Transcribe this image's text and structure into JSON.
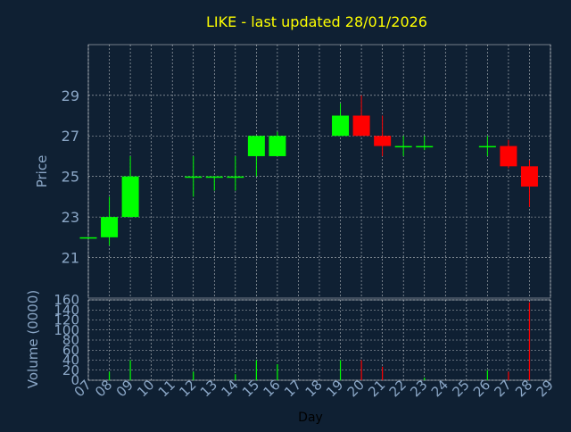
{
  "chart_data": [
    {
      "type": "candlestick",
      "title": "LIKE - last updated 28/01/2026",
      "xlabel": "",
      "ylabel": "Price",
      "ylim": [
        19.0,
        31.5
      ],
      "yticks": [
        "21",
        "23",
        "25",
        "27",
        "29"
      ],
      "grid": true,
      "colors": {
        "up": "#00ff00",
        "down": "#ff0000",
        "grid": "#ffffff",
        "title": "#ffff00",
        "axis_text": "#8ba7c7",
        "background": "#0f2033"
      },
      "x": [
        "07",
        "08",
        "09",
        "10",
        "11",
        "12",
        "13",
        "14",
        "15",
        "16",
        "17",
        "18",
        "19",
        "20",
        "21",
        "22",
        "23",
        "24",
        "25",
        "26",
        "27",
        "28",
        "29"
      ],
      "series": [
        {
          "x": "07",
          "open": 22.0,
          "high": 22.0,
          "low": 22.0,
          "close": 22.0
        },
        {
          "x": "08",
          "open": 22.0,
          "high": 24.0,
          "low": 21.6,
          "close": 23.0
        },
        {
          "x": "09",
          "open": 23.0,
          "high": 26.0,
          "low": 23.0,
          "close": 25.0
        },
        {
          "x": "12",
          "open": 25.0,
          "high": 26.0,
          "low": 24.0,
          "close": 25.0
        },
        {
          "x": "13",
          "open": 25.0,
          "high": 25.0,
          "low": 24.3,
          "close": 25.0
        },
        {
          "x": "14",
          "open": 25.0,
          "high": 26.0,
          "low": 24.3,
          "close": 25.0
        },
        {
          "x": "15",
          "open": 26.0,
          "high": 27.0,
          "low": 25.0,
          "close": 27.0
        },
        {
          "x": "16",
          "open": 26.0,
          "high": 27.2,
          "low": 26.0,
          "close": 27.0
        },
        {
          "x": "19",
          "open": 27.0,
          "high": 28.6,
          "low": 27.0,
          "close": 28.0
        },
        {
          "x": "20",
          "open": 28.0,
          "high": 29.0,
          "low": 27.0,
          "close": 27.0
        },
        {
          "x": "21",
          "open": 27.0,
          "high": 28.0,
          "low": 26.0,
          "close": 26.5
        },
        {
          "x": "22",
          "open": 26.5,
          "high": 27.0,
          "low": 26.0,
          "close": 26.5
        },
        {
          "x": "23",
          "open": 26.5,
          "high": 27.0,
          "low": 26.3,
          "close": 26.5
        },
        {
          "x": "26",
          "open": 26.5,
          "high": 27.0,
          "low": 26.0,
          "close": 26.5
        },
        {
          "x": "27",
          "open": 26.5,
          "high": 26.8,
          "low": 25.4,
          "close": 25.5
        },
        {
          "x": "28",
          "open": 25.5,
          "high": 25.8,
          "low": 23.5,
          "close": 24.5
        }
      ]
    },
    {
      "type": "bar",
      "xlabel": "Day",
      "ylabel": "Volume (0000)",
      "ylim": [
        0,
        160
      ],
      "yticks": [
        "0",
        "20",
        "40",
        "60",
        "80",
        "100",
        "120",
        "140",
        "160"
      ],
      "grid": true,
      "categories": [
        "08",
        "09",
        "12",
        "14",
        "15",
        "16",
        "19",
        "20",
        "21",
        "23",
        "26",
        "27",
        "28"
      ],
      "values": [
        17,
        40,
        17,
        12,
        40,
        32,
        40,
        40,
        27,
        5,
        20,
        17,
        155
      ],
      "bar_colors": [
        "#00ff00",
        "#00ff00",
        "#00ff00",
        "#00ff00",
        "#00ff00",
        "#00ff00",
        "#00ff00",
        "#ff0000",
        "#ff0000",
        "#00ff00",
        "#00ff00",
        "#ff0000",
        "#ff0000"
      ]
    }
  ]
}
